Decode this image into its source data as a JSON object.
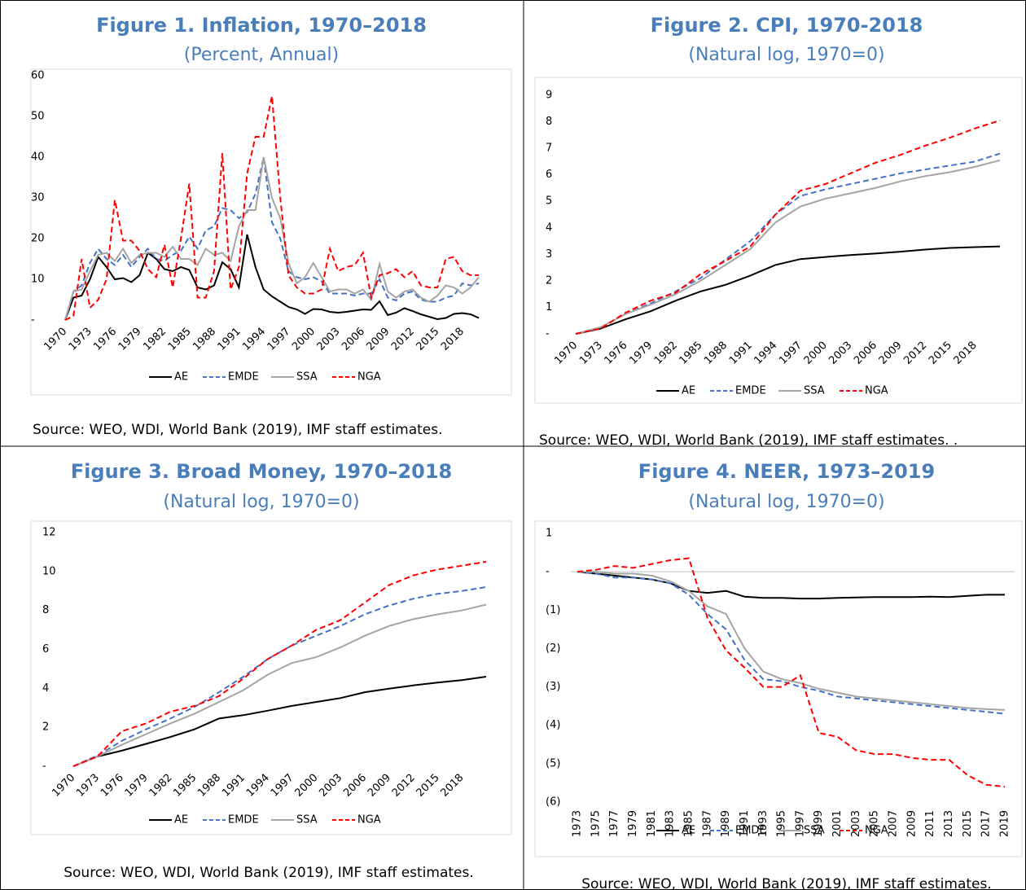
{
  "chart_data": [
    {
      "type": "line",
      "title": "Figure 1. Inflation, 1970–2018",
      "subtitle": "(Percent, Annual)",
      "source": "Source: WEO, WDI, World Bank (2019), IMF staff estimates.",
      "x": [
        1970,
        1971,
        1972,
        1973,
        1974,
        1975,
        1976,
        1977,
        1978,
        1979,
        1980,
        1981,
        1982,
        1983,
        1984,
        1985,
        1986,
        1987,
        1988,
        1989,
        1990,
        1991,
        1992,
        1993,
        1994,
        1995,
        1996,
        1997,
        1998,
        1999,
        2000,
        2001,
        2002,
        2003,
        2004,
        2005,
        2006,
        2007,
        2008,
        2009,
        2010,
        2011,
        2012,
        2013,
        2014,
        2015,
        2016,
        2017,
        2018,
        2019,
        2020
      ],
      "xlim": [
        1970,
        2020
      ],
      "xticks": [
        1970,
        1973,
        1976,
        1979,
        1982,
        1985,
        1988,
        1991,
        1994,
        1997,
        2000,
        2003,
        2006,
        2009,
        2012,
        2015,
        2018
      ],
      "ylim": [
        0,
        60
      ],
      "yticks": [
        {
          "value": 0,
          "label": "-"
        },
        10,
        20,
        30,
        40,
        50,
        60
      ],
      "series": [
        {
          "name": "AE",
          "color": "#000000",
          "dash": false,
          "values": [
            0,
            5.5,
            6,
            10,
            15.5,
            13,
            10,
            10.3,
            9.3,
            11,
            16.5,
            15,
            12.5,
            12,
            13,
            12.3,
            8,
            7.5,
            8.5,
            14.2,
            12.5,
            8,
            21,
            13,
            7.5,
            5.8,
            4.5,
            3.2,
            2.6,
            1.5,
            2.7,
            2.6,
            2,
            1.8,
            2,
            2.3,
            2.6,
            2.5,
            4.6,
            1.2,
            1.8,
            2.9,
            2.2,
            1.4,
            0.8,
            0.2,
            0.5,
            1.5,
            1.7,
            1.4,
            0.5
          ]
        },
        {
          "name": "EMDE",
          "color": "#4472c4",
          "dash": true,
          "values": [
            0,
            7,
            8.5,
            14,
            17.5,
            15,
            13.5,
            16,
            13,
            15.5,
            17.5,
            15,
            14.5,
            16,
            17,
            20.5,
            17.5,
            22,
            23,
            27.5,
            27,
            25,
            26.5,
            31,
            40,
            24,
            20,
            12,
            10.5,
            10,
            10.5,
            9.5,
            6.5,
            6.5,
            6.5,
            6,
            6.5,
            6.5,
            10,
            5.5,
            4.8,
            6.5,
            7,
            5,
            4.5,
            4.5,
            5.5,
            6,
            9,
            8.5,
            9
          ]
        },
        {
          "name": "SSA",
          "color": "#a5a5a5",
          "dash": false,
          "values": [
            0,
            7,
            7.5,
            12,
            16,
            16.5,
            14.5,
            17.5,
            14,
            16,
            16.5,
            16.5,
            15.5,
            18,
            15,
            15,
            13.5,
            17.5,
            16,
            16.5,
            14.5,
            23,
            27,
            27,
            40,
            30,
            25,
            14,
            9,
            10.5,
            14,
            10.5,
            7,
            7.5,
            7.5,
            6.5,
            7.5,
            5,
            13.8,
            7,
            5.5,
            7,
            7.5,
            5.5,
            4.5,
            6,
            8.5,
            8,
            6.5,
            8,
            10.5
          ]
        },
        {
          "name": "NGA",
          "color": "#ff0000",
          "dash": true,
          "values": [
            0,
            1,
            15,
            3,
            5,
            10,
            29.5,
            19.5,
            19.5,
            17,
            12.5,
            10.5,
            18.5,
            8,
            20,
            33.5,
            5.5,
            5.5,
            12,
            41,
            7.5,
            13,
            36,
            45,
            45,
            55,
            30,
            11,
            8,
            6.5,
            6.5,
            7.5,
            17.5,
            12,
            13,
            13.5,
            16.5,
            5.5,
            11,
            11.5,
            12.5,
            10.5,
            12,
            8.5,
            8,
            8,
            15,
            15.5,
            12,
            11,
            11
          ]
        }
      ]
    },
    {
      "type": "line",
      "title": "Figure 2. CPI, 1970-2018",
      "subtitle": "(Natural log, 1970=0)",
      "source": "Source: WEO, WDI, World Bank (2019), IMF staff estimates.  .",
      "x": [
        1970,
        1973,
        1976,
        1979,
        1982,
        1985,
        1988,
        1991,
        1994,
        1997,
        2000,
        2003,
        2006,
        2009,
        2012,
        2015,
        2018,
        2021
      ],
      "xlim": [
        1970,
        2021
      ],
      "xticks": [
        1970,
        1973,
        1976,
        1979,
        1982,
        1985,
        1988,
        1991,
        1994,
        1997,
        2000,
        2003,
        2006,
        2009,
        2012,
        2015,
        2018
      ],
      "ylim": [
        0,
        9
      ],
      "yticks": [
        {
          "value": 0,
          "label": "-"
        },
        1,
        2,
        3,
        4,
        5,
        6,
        7,
        8,
        9
      ],
      "series": [
        {
          "name": "AE",
          "color": "#000000",
          "dash": false,
          "values": [
            0,
            0.2,
            0.55,
            0.85,
            1.25,
            1.6,
            1.85,
            2.2,
            2.6,
            2.82,
            2.9,
            2.97,
            3.03,
            3.1,
            3.18,
            3.24,
            3.27,
            3.3
          ]
        },
        {
          "name": "EMDE",
          "color": "#4472c4",
          "dash": true,
          "values": [
            0,
            0.25,
            0.75,
            1.15,
            1.6,
            2.1,
            2.8,
            3.5,
            4.5,
            5.2,
            5.45,
            5.65,
            5.85,
            6.05,
            6.2,
            6.35,
            6.5,
            6.8
          ]
        },
        {
          "name": "SSA",
          "color": "#a5a5a5",
          "dash": false,
          "values": [
            0,
            0.25,
            0.75,
            1.1,
            1.5,
            2,
            2.6,
            3.2,
            4.2,
            4.8,
            5.1,
            5.3,
            5.5,
            5.75,
            5.95,
            6.1,
            6.3,
            6.55
          ]
        },
        {
          "name": "NGA",
          "color": "#ff0000",
          "dash": true,
          "values": [
            0,
            0.2,
            0.8,
            1.25,
            1.55,
            2.25,
            2.75,
            3.3,
            4.5,
            5.4,
            5.65,
            6.05,
            6.45,
            6.75,
            7.1,
            7.4,
            7.75,
            8.05
          ]
        }
      ]
    },
    {
      "type": "line",
      "title": "Figure 3. Broad Money, 1970–2018",
      "subtitle": "(Natural log, 1970=0)",
      "source": "Source: WEO, WDI, World Bank (2019), IMF staff estimates.",
      "x": [
        1970,
        1973,
        1976,
        1979,
        1982,
        1985,
        1988,
        1991,
        1994,
        1997,
        2000,
        2003,
        2006,
        2009,
        2012,
        2015,
        2018,
        2021
      ],
      "xlim": [
        1970,
        2021
      ],
      "xticks": [
        1970,
        1973,
        1976,
        1979,
        1982,
        1985,
        1988,
        1991,
        1994,
        1997,
        2000,
        2003,
        2006,
        2009,
        2012,
        2015,
        2018
      ],
      "ylim": [
        0,
        12
      ],
      "yticks": [
        {
          "value": 0,
          "label": "-"
        },
        2,
        4,
        6,
        8,
        10,
        12
      ],
      "series": [
        {
          "name": "AE",
          "color": "#000000",
          "dash": false,
          "values": [
            0,
            0.5,
            0.8,
            1.15,
            1.5,
            1.9,
            2.45,
            2.62,
            2.85,
            3.1,
            3.3,
            3.5,
            3.8,
            3.98,
            4.15,
            4.3,
            4.42,
            4.6
          ]
        },
        {
          "name": "EMDE",
          "color": "#4472c4",
          "dash": true,
          "values": [
            0,
            0.55,
            1.3,
            1.9,
            2.45,
            3.05,
            3.8,
            4.6,
            5.5,
            6.2,
            6.7,
            7.2,
            7.8,
            8.25,
            8.6,
            8.85,
            9.0,
            9.2
          ]
        },
        {
          "name": "SSA",
          "color": "#a5a5a5",
          "dash": false,
          "values": [
            0,
            0.5,
            1.1,
            1.65,
            2.2,
            2.7,
            3.3,
            3.9,
            4.7,
            5.3,
            5.6,
            6.1,
            6.7,
            7.2,
            7.55,
            7.8,
            8.0,
            8.3
          ]
        },
        {
          "name": "NGA",
          "color": "#ff0000",
          "dash": true,
          "values": [
            0,
            0.5,
            1.8,
            2.2,
            2.8,
            3.1,
            3.6,
            4.5,
            5.5,
            6.2,
            7.0,
            7.5,
            8.4,
            9.3,
            9.8,
            10.1,
            10.3,
            10.5
          ]
        }
      ]
    },
    {
      "type": "line",
      "title": "Figure 4. NEER, 1973–2019",
      "subtitle": "(Natural log, 1970=0)",
      "source": "Source: WEO, WDI, World Bank (2019), IMF staff estimates.",
      "x": [
        1973,
        1975,
        1977,
        1979,
        1981,
        1983,
        1985,
        1987,
        1989,
        1991,
        1993,
        1995,
        1997,
        1999,
        2001,
        2003,
        2005,
        2007,
        2009,
        2011,
        2013,
        2015,
        2017,
        2019
      ],
      "xlim": [
        1973,
        2019
      ],
      "xticks": [
        1973,
        1975,
        1977,
        1979,
        1981,
        1983,
        1985,
        1987,
        1989,
        1991,
        1993,
        1995,
        1997,
        1999,
        2001,
        2003,
        2005,
        2007,
        2009,
        2011,
        2013,
        2015,
        2017,
        2019
      ],
      "ylim": [
        -6,
        1
      ],
      "yticks": [
        1,
        {
          "value": 0,
          "label": "-"
        },
        {
          "value": -1,
          "label": "(1)"
        },
        {
          "value": -2,
          "label": "(2)"
        },
        {
          "value": -3,
          "label": "(3)"
        },
        {
          "value": -4,
          "label": "(4)"
        },
        {
          "value": -5,
          "label": "(5)"
        },
        {
          "value": -6,
          "label": "(6)"
        }
      ],
      "zero_line": true,
      "series": [
        {
          "name": "AE",
          "color": "#000000",
          "dash": false,
          "values": [
            0,
            -0.05,
            -0.1,
            -0.15,
            -0.2,
            -0.3,
            -0.5,
            -0.55,
            -0.5,
            -0.65,
            -0.68,
            -0.68,
            -0.7,
            -0.7,
            -0.68,
            -0.67,
            -0.66,
            -0.66,
            -0.66,
            -0.65,
            -0.66,
            -0.63,
            -0.6,
            -0.6
          ]
        },
        {
          "name": "EMDE",
          "color": "#4472c4",
          "dash": true,
          "values": [
            0,
            -0.05,
            -0.15,
            -0.15,
            -0.2,
            -0.3,
            -0.6,
            -1.1,
            -1.5,
            -2.3,
            -2.8,
            -2.85,
            -3.0,
            -3.1,
            -3.25,
            -3.3,
            -3.35,
            -3.4,
            -3.45,
            -3.5,
            -3.55,
            -3.6,
            -3.65,
            -3.7
          ]
        },
        {
          "name": "SSA",
          "color": "#a5a5a5",
          "dash": false,
          "values": [
            0,
            0,
            -0.05,
            -0.05,
            -0.1,
            -0.25,
            -0.5,
            -0.9,
            -1.1,
            -2.0,
            -2.6,
            -2.8,
            -2.9,
            -3.05,
            -3.15,
            -3.25,
            -3.3,
            -3.35,
            -3.4,
            -3.45,
            -3.5,
            -3.55,
            -3.58,
            -3.6
          ]
        },
        {
          "name": "NGA",
          "color": "#ff0000",
          "dash": true,
          "values": [
            0,
            0.05,
            0.15,
            0.1,
            0.2,
            0.3,
            0.35,
            -1.2,
            -2.05,
            -2.5,
            -3.0,
            -3.0,
            -2.7,
            -4.2,
            -4.3,
            -4.65,
            -4.75,
            -4.75,
            -4.85,
            -4.9,
            -4.9,
            -5.3,
            -5.55,
            -5.6
          ]
        }
      ]
    }
  ]
}
